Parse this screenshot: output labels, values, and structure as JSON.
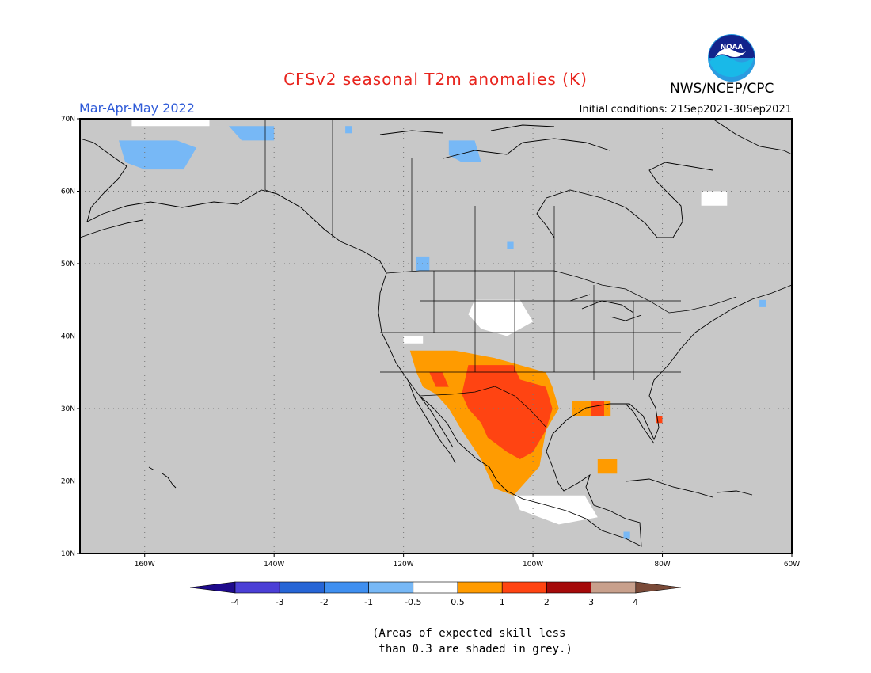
{
  "header": {
    "title": "CFSv2 seasonal T2m anomalies (K)",
    "organization": "NWS/NCEP/CPC",
    "logo_text": "NOAA",
    "period": "Mar-Apr-May 2022",
    "initial_conditions": "Initial conditions: 21Sep2021-30Sep2021"
  },
  "map": {
    "latitude_labels": [
      "70N",
      "60N",
      "50N",
      "40N",
      "30N",
      "20N",
      "10N"
    ],
    "latitudes": [
      70,
      60,
      50,
      40,
      30,
      20,
      10
    ],
    "longitude_labels": [
      "160W",
      "140W",
      "120W",
      "100W",
      "80W",
      "60W"
    ],
    "longitudes": [
      -160,
      -140,
      -120,
      -100,
      -80,
      -60
    ],
    "extent": {
      "lon_min": -170,
      "lon_max": -60,
      "lat_min": 10,
      "lat_max": 70
    },
    "grey_meaning": "low skill",
    "colors": {
      "background": "#c8c8c8",
      "outline": "#000000"
    },
    "anomaly_regions": [
      {
        "class": "-1",
        "polygon": [
          [
            -164,
            67
          ],
          [
            -160,
            67
          ],
          [
            -155,
            67
          ],
          [
            -152,
            66
          ],
          [
            -154,
            63
          ],
          [
            -160,
            63
          ],
          [
            -163,
            64
          ]
        ]
      },
      {
        "class": "-1",
        "polygon": [
          [
            -147,
            69
          ],
          [
            -140,
            69
          ],
          [
            -140,
            67
          ],
          [
            -145,
            67
          ]
        ]
      },
      {
        "class": "-1",
        "polygon": [
          [
            -129,
            69
          ],
          [
            -128,
            69
          ],
          [
            -128,
            68
          ],
          [
            -129,
            68
          ]
        ]
      },
      {
        "class": "-1",
        "polygon": [
          [
            -113,
            67
          ],
          [
            -109,
            67
          ],
          [
            -108,
            64
          ],
          [
            -111,
            64
          ],
          [
            -113,
            65
          ]
        ]
      },
      {
        "class": "-1",
        "polygon": [
          [
            -118,
            51
          ],
          [
            -116,
            51
          ],
          [
            -116,
            49
          ],
          [
            -118,
            49
          ]
        ]
      },
      {
        "class": "-1",
        "polygon": [
          [
            -104,
            53
          ],
          [
            -103,
            53
          ],
          [
            -103,
            52
          ],
          [
            -104,
            52
          ]
        ]
      },
      {
        "class": "-1",
        "polygon": [
          [
            -65,
            45
          ],
          [
            -64,
            45
          ],
          [
            -64,
            44
          ],
          [
            -65,
            44
          ]
        ]
      },
      {
        "class": "-1",
        "polygon": [
          [
            -86,
            13
          ],
          [
            -85,
            13
          ],
          [
            -85,
            12
          ],
          [
            -86,
            12
          ]
        ]
      },
      {
        "class": "-0.5",
        "polygon": [
          [
            -162,
            70
          ],
          [
            -150,
            70
          ],
          [
            -150,
            69
          ],
          [
            -162,
            69
          ]
        ]
      },
      {
        "class": "-0.5",
        "polygon": [
          [
            -74,
            60
          ],
          [
            -70,
            60
          ],
          [
            -70,
            58
          ],
          [
            -74,
            58
          ]
        ]
      },
      {
        "class": "-0.5",
        "polygon": [
          [
            -109,
            45
          ],
          [
            -102,
            45
          ],
          [
            -100,
            42
          ],
          [
            -104,
            40
          ],
          [
            -108,
            41
          ],
          [
            -110,
            43
          ]
        ]
      },
      {
        "class": "-0.5",
        "polygon": [
          [
            -120,
            40
          ],
          [
            -117,
            40
          ],
          [
            -117,
            39
          ],
          [
            -120,
            39
          ]
        ]
      },
      {
        "class": "-0.5",
        "polygon": [
          [
            -103,
            18
          ],
          [
            -92,
            18
          ],
          [
            -90,
            15
          ],
          [
            -96,
            14
          ],
          [
            -102,
            16
          ]
        ]
      },
      {
        "class": "0.5",
        "polygon": [
          [
            -119,
            38
          ],
          [
            -112,
            38
          ],
          [
            -106,
            37
          ],
          [
            -102,
            36
          ],
          [
            -98,
            35
          ],
          [
            -97,
            33
          ],
          [
            -96,
            30
          ],
          [
            -98,
            27
          ],
          [
            -99,
            22
          ],
          [
            -101,
            20
          ],
          [
            -103,
            18
          ],
          [
            -106,
            19
          ],
          [
            -108,
            23
          ],
          [
            -111,
            27
          ],
          [
            -113,
            30
          ],
          [
            -115,
            32
          ],
          [
            -117,
            33
          ],
          [
            -118,
            35
          ]
        ]
      },
      {
        "class": "0.5",
        "polygon": [
          [
            -94,
            31
          ],
          [
            -88,
            31
          ],
          [
            -88,
            29
          ],
          [
            -94,
            29
          ]
        ]
      },
      {
        "class": "0.5",
        "polygon": [
          [
            -90,
            23
          ],
          [
            -87,
            23
          ],
          [
            -87,
            21
          ],
          [
            -90,
            21
          ]
        ]
      },
      {
        "class": "1",
        "polygon": [
          [
            -116,
            35
          ],
          [
            -114,
            35
          ],
          [
            -113,
            33
          ],
          [
            -115,
            33
          ]
        ]
      },
      {
        "class": "1",
        "polygon": [
          [
            -110,
            36
          ],
          [
            -103,
            36
          ],
          [
            -102,
            34
          ],
          [
            -98,
            33
          ],
          [
            -97,
            30
          ],
          [
            -98,
            27
          ],
          [
            -100,
            24
          ],
          [
            -102,
            23
          ],
          [
            -104,
            24
          ],
          [
            -107,
            26
          ],
          [
            -108,
            28
          ],
          [
            -110,
            30
          ],
          [
            -111,
            32
          ]
        ]
      },
      {
        "class": "1",
        "polygon": [
          [
            -91,
            31
          ],
          [
            -89,
            31
          ],
          [
            -89,
            29
          ],
          [
            -91,
            29
          ]
        ]
      },
      {
        "class": "1",
        "polygon": [
          [
            -81,
            29
          ],
          [
            -80,
            29
          ],
          [
            -80,
            28
          ],
          [
            -81,
            28
          ]
        ]
      }
    ]
  },
  "colorbar": {
    "labels": [
      "-4",
      "-3",
      "-2",
      "-1",
      "-0.5",
      "0.5",
      "1",
      "2",
      "3",
      "4"
    ],
    "colors": [
      "#1e0a8c",
      "#4b3fd6",
      "#2665d6",
      "#3f8ff0",
      "#77b8f6",
      "#ffffff",
      "#ff9b00",
      "#ff4412",
      "#a50a0a",
      "#c8a08c",
      "#7a4a38"
    ]
  },
  "footnote": "(Areas of expected skill less\n than 0.3 are shaded in grey.)"
}
